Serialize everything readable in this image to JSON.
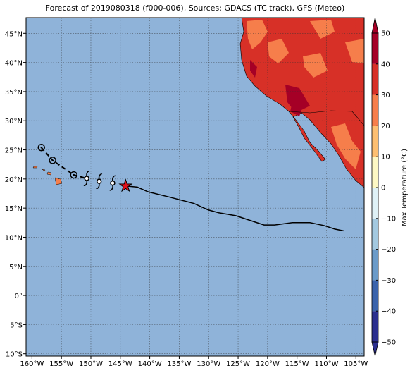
{
  "title": "Forecast of 2019080318 (f000-006), Sources: GDACS (TC track), GFS (Meteo)",
  "map": {
    "xlim": [
      -161,
      -103.6
    ],
    "ylim": [
      -10.4,
      47.7
    ],
    "xticks": [
      {
        "value": -160,
        "label": "160°W"
      },
      {
        "value": -155,
        "label": "155°W"
      },
      {
        "value": -150,
        "label": "150°W"
      },
      {
        "value": -145,
        "label": "145°W"
      },
      {
        "value": -140,
        "label": "140°W"
      },
      {
        "value": -135,
        "label": "135°W"
      },
      {
        "value": -130,
        "label": "130°W"
      },
      {
        "value": -125,
        "label": "125°W"
      },
      {
        "value": -120,
        "label": "120°W"
      },
      {
        "value": -115,
        "label": "115°W"
      },
      {
        "value": -110,
        "label": "110°W"
      },
      {
        "value": -105,
        "label": "105°W"
      }
    ],
    "yticks": [
      {
        "value": 45,
        "label": "45°N"
      },
      {
        "value": 40,
        "label": "40°N"
      },
      {
        "value": 35,
        "label": "35°N"
      },
      {
        "value": 30,
        "label": "30°N"
      },
      {
        "value": 25,
        "label": "25°N"
      },
      {
        "value": 20,
        "label": "20°N"
      },
      {
        "value": 15,
        "label": "15°N"
      },
      {
        "value": 10,
        "label": "10°N"
      },
      {
        "value": 5,
        "label": "5°N"
      },
      {
        "value": 0,
        "label": "0°"
      },
      {
        "value": -5,
        "label": "5°S"
      },
      {
        "value": -10,
        "label": "10°S"
      }
    ]
  },
  "track": {
    "observed": {
      "lon": [
        -158.4,
        -156.5,
        -152.9
      ],
      "lat": [
        25.4,
        23.2,
        20.7
      ]
    },
    "forecast_points": {
      "lon": [
        -150.7,
        -148.6,
        -146.3
      ],
      "lat": [
        20.1,
        19.6,
        19.3
      ]
    },
    "current": {
      "lon": -144.1,
      "lat": 18.8
    },
    "forecast_path": {
      "lon": [
        -144.1,
        -142.1,
        -140.3,
        -136.7,
        -132.5,
        -130.1,
        -128.3,
        -125.4,
        -123.0,
        -120.6,
        -118.8,
        -115.8,
        -112.8,
        -110.4,
        -108.6,
        -107.1
      ],
      "lat": [
        18.8,
        18.6,
        17.8,
        16.9,
        15.8,
        14.7,
        14.2,
        13.7,
        12.9,
        12.1,
        12.1,
        12.5,
        12.5,
        12.0,
        11.4,
        11.1
      ]
    }
  },
  "colorbar": {
    "label": "Max Temperature (°C)",
    "ticks": [
      {
        "value": -50,
        "label": "−50"
      },
      {
        "value": -40,
        "label": "−40"
      },
      {
        "value": -30,
        "label": "−30"
      },
      {
        "value": -20,
        "label": "−20"
      },
      {
        "value": -10,
        "label": "−10"
      },
      0,
      10,
      20,
      30,
      40,
      50
    ],
    "colors": [
      "#2b2f8f",
      "#3b64ac",
      "#6a9bc9",
      "#a3c9e0",
      "#dff1f6",
      "#fdf8c4",
      "#fdbf71",
      "#f67e4b",
      "#d73027",
      "#a50026"
    ]
  }
}
